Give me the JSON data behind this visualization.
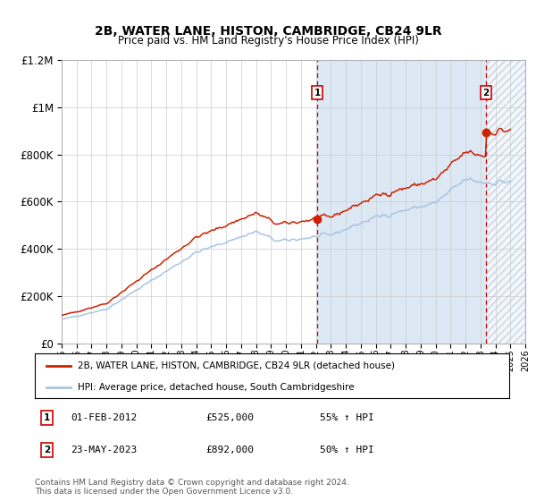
{
  "title": "2B, WATER LANE, HISTON, CAMBRIDGE, CB24 9LR",
  "subtitle": "Price paid vs. HM Land Registry's House Price Index (HPI)",
  "sale1_date": "01-FEB-2012",
  "sale1_price": 525000,
  "sale1_year": 2012.08,
  "sale2_date": "23-MAY-2023",
  "sale2_price": 892000,
  "sale2_year": 2023.38,
  "sale1_hpi_pct": "55%",
  "sale2_hpi_pct": "50%",
  "legend_line1": "2B, WATER LANE, HISTON, CAMBRIDGE, CB24 9LR (detached house)",
  "legend_line2": "HPI: Average price, detached house, South Cambridgeshire",
  "footnote": "Contains HM Land Registry data © Crown copyright and database right 2024.\nThis data is licensed under the Open Government Licence v3.0.",
  "hpi_line_color": "#aac4e0",
  "price_line_color": "#cc2200",
  "bg_color_light": "#dde8f5",
  "xmin": 1995,
  "xmax": 2026,
  "ymin": 0,
  "ymax": 1200000,
  "figwidth": 6.0,
  "figheight": 5.6,
  "dpi": 100
}
